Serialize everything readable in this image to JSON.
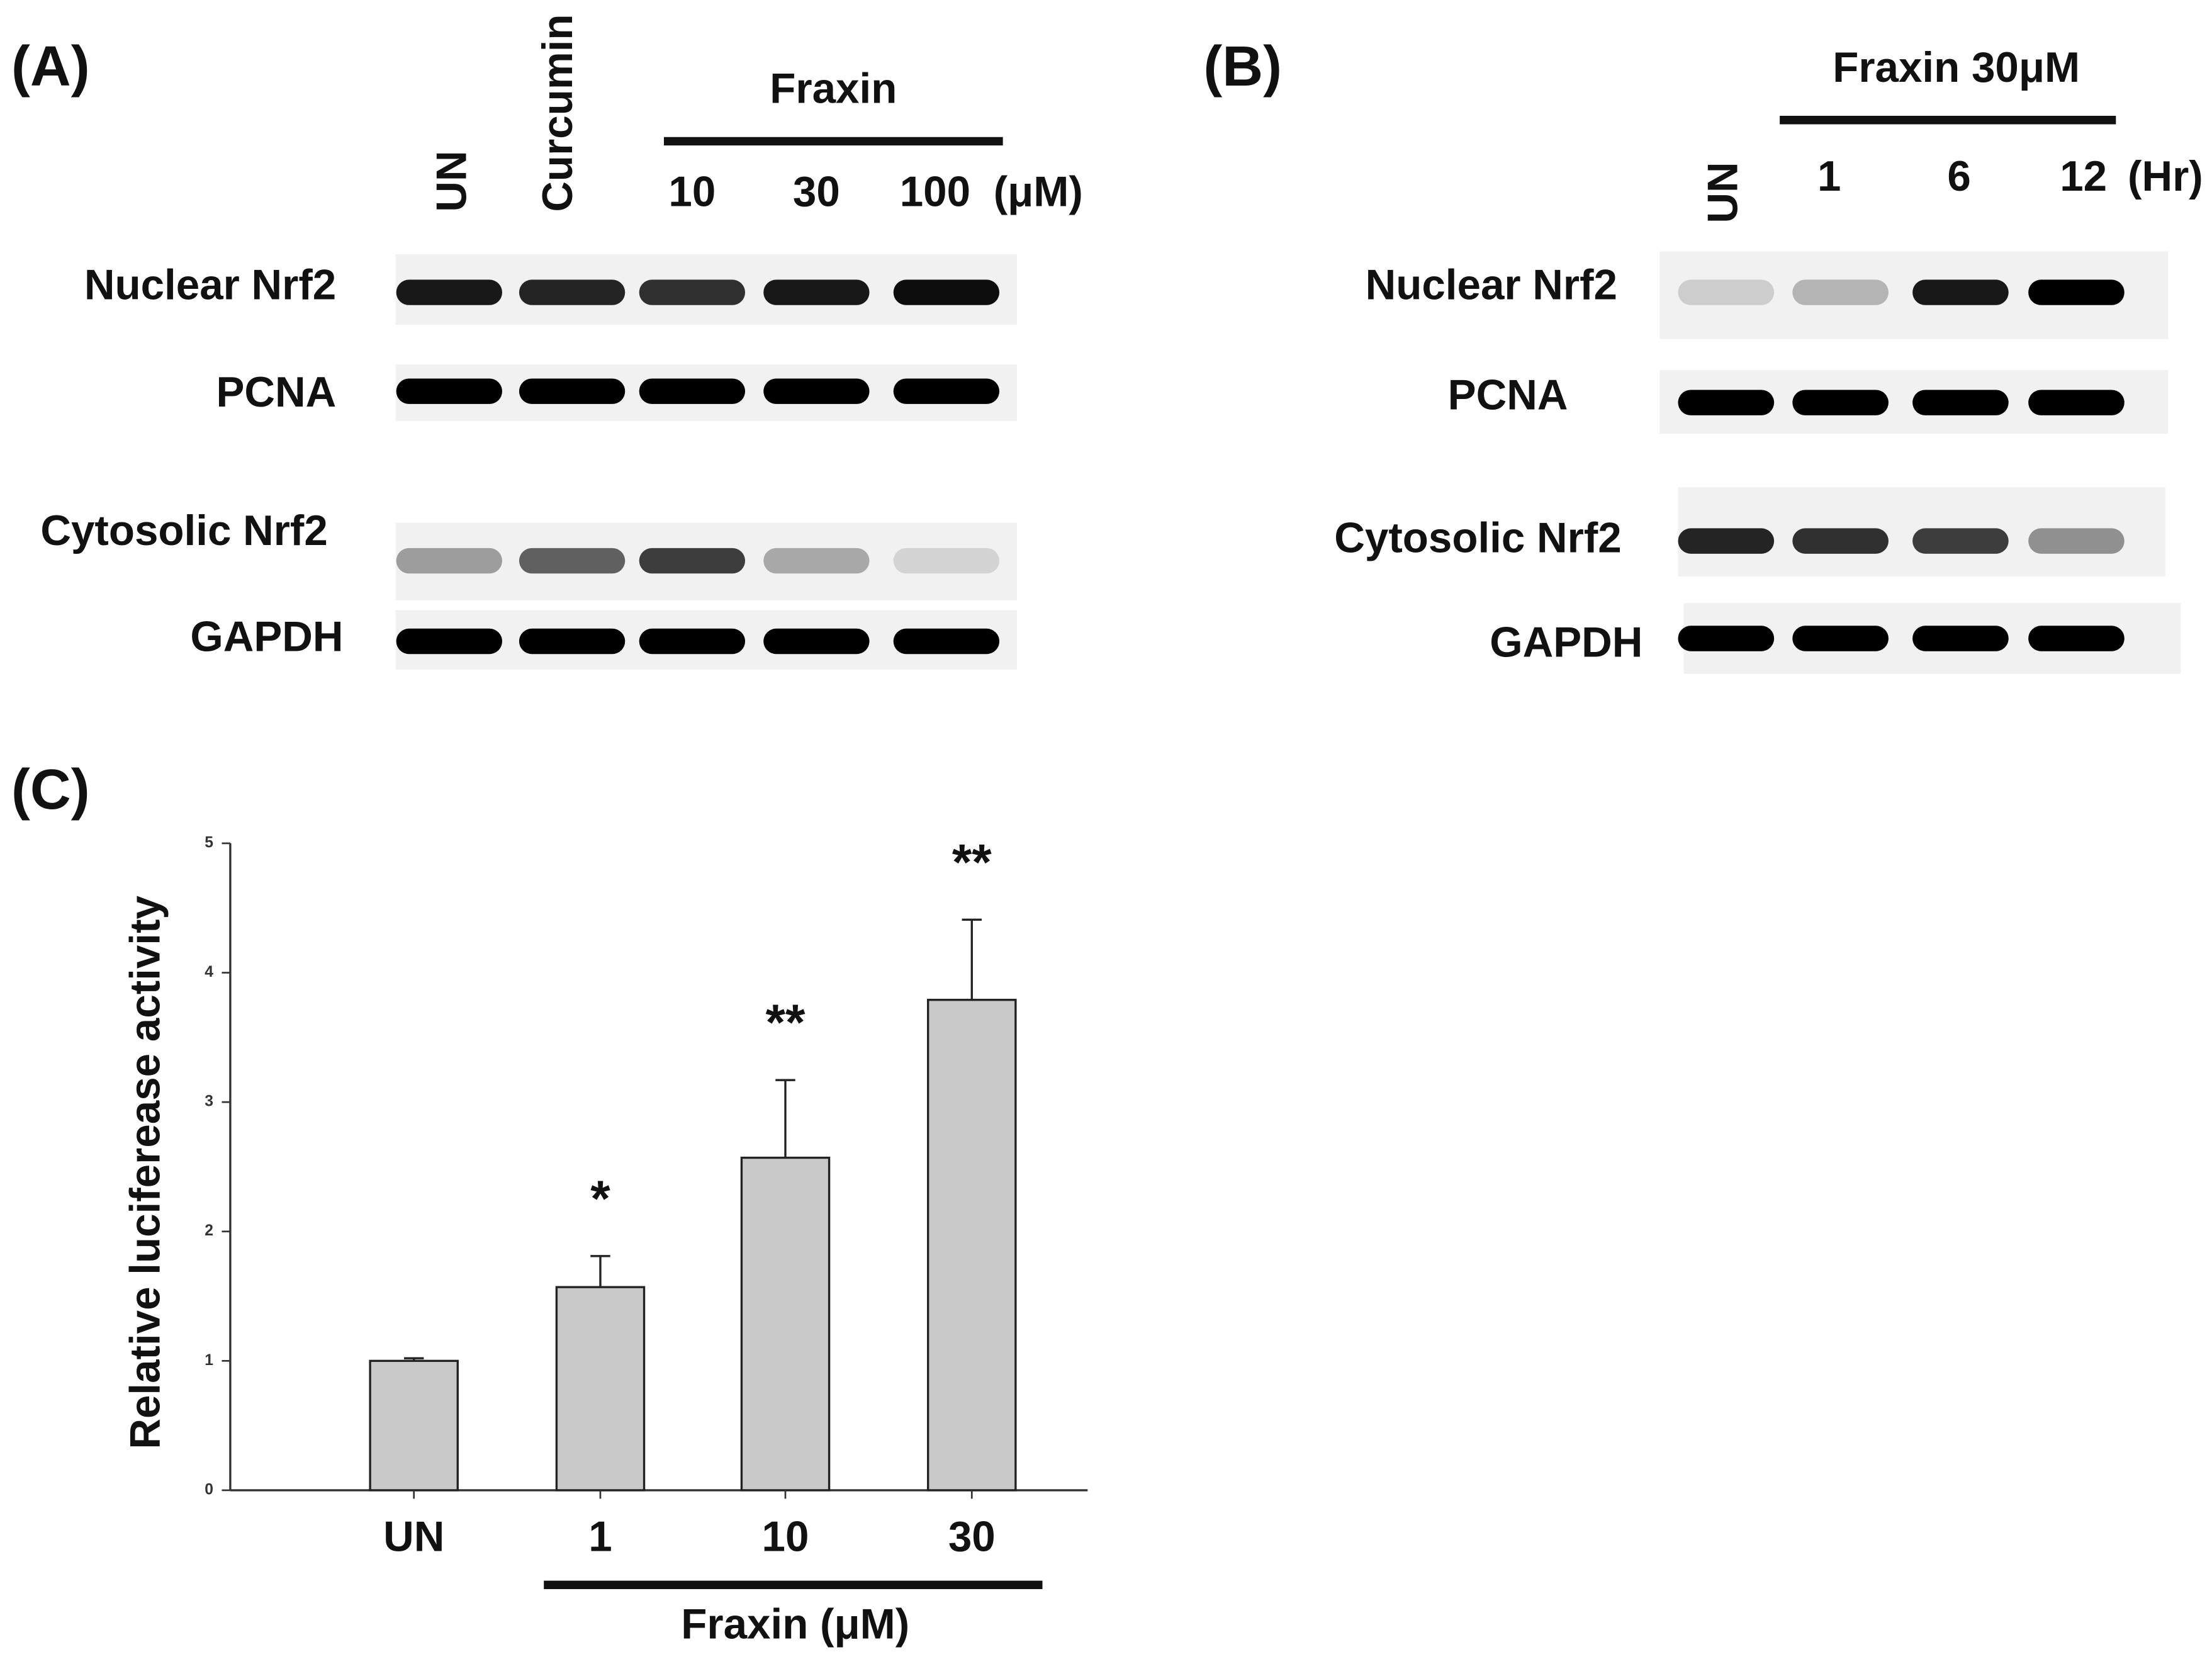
{
  "panel_a": {
    "label": "(A)",
    "group_label": "Fraxin",
    "lanes": [
      "UN",
      "Curcumin",
      "10",
      "30",
      "100"
    ],
    "unit": "(μM)",
    "rows": [
      "Nuclear Nrf2",
      "PCNA",
      "Cytosolic Nrf2",
      "GAPDH"
    ]
  },
  "panel_b": {
    "label": "(B)",
    "group_label": "Fraxin 30μM",
    "lanes": [
      "UN",
      "1",
      "6",
      "12"
    ],
    "unit": "(Hr)",
    "rows": [
      "Nuclear Nrf2",
      "PCNA",
      "Cytosolic Nrf2",
      "GAPDH"
    ]
  },
  "panel_c": {
    "label": "(C)"
  },
  "chart_data": {
    "type": "bar",
    "y_label": "Relative luciferease activity",
    "categories": [
      "UN",
      "1",
      "10",
      "30"
    ],
    "values": [
      1.0,
      1.57,
      2.57,
      3.79
    ],
    "errors": [
      0.02,
      0.24,
      0.6,
      0.62
    ],
    "significance": [
      null,
      "*",
      "**",
      "**"
    ],
    "group_label": "Fraxin (μM)",
    "color": "#c9c9c9",
    "ylim": [
      0,
      5
    ],
    "yticks": [
      0,
      1,
      2,
      3,
      4,
      5
    ]
  }
}
